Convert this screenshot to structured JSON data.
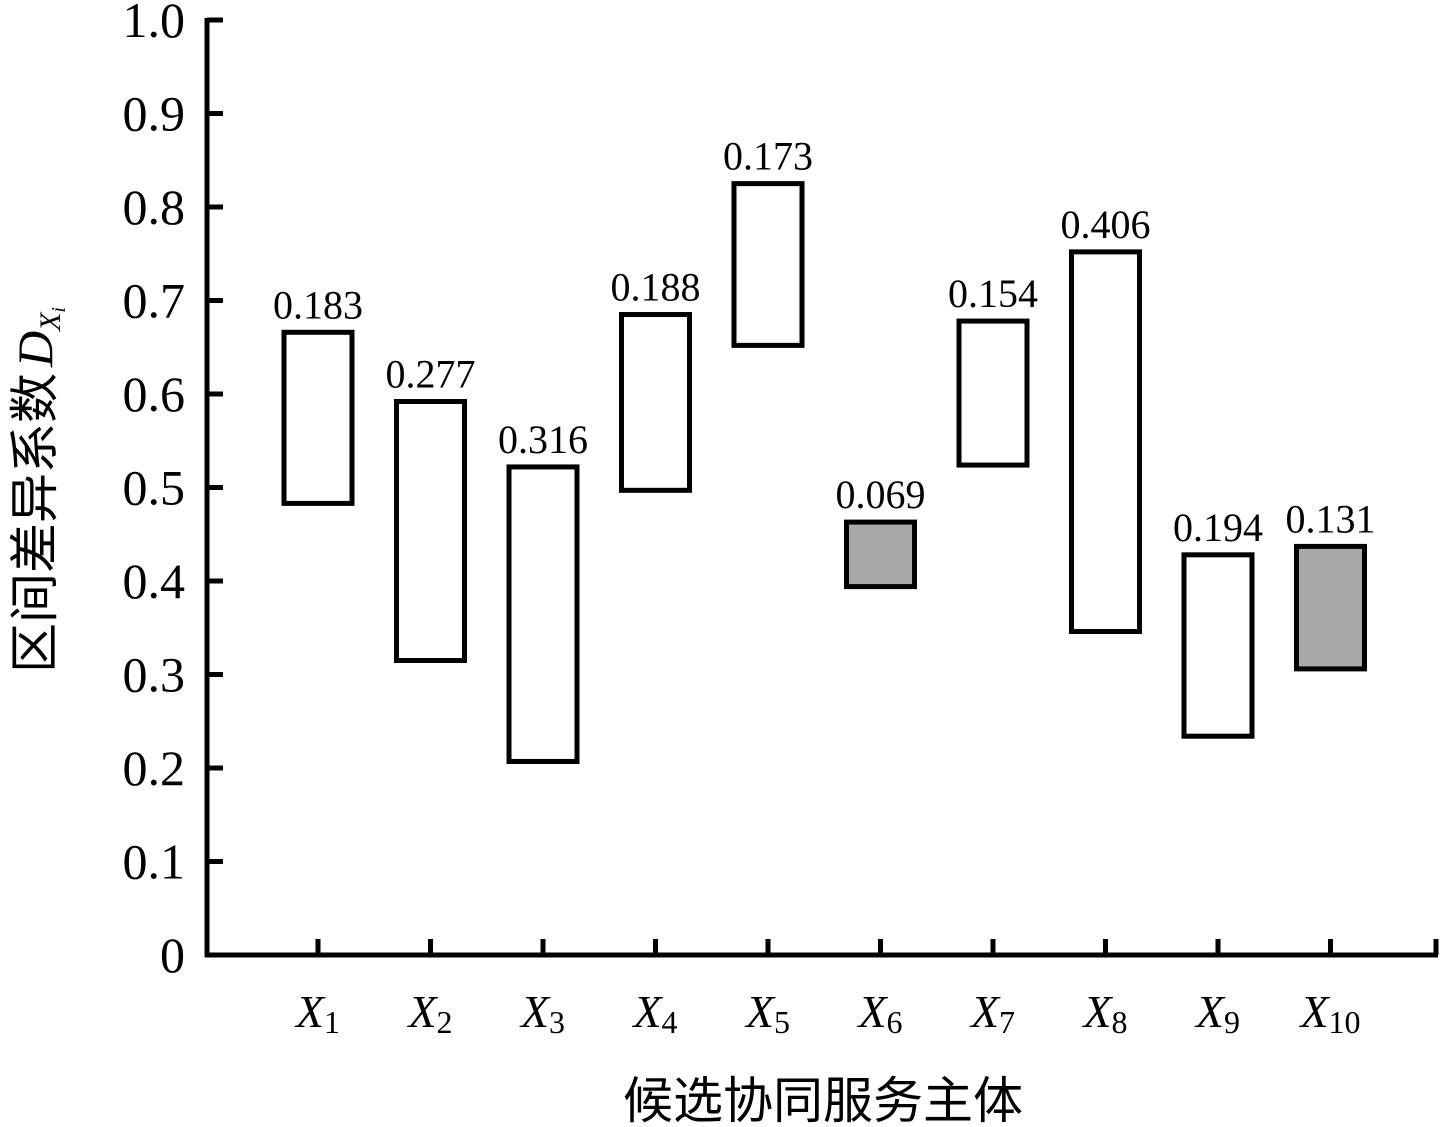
{
  "chart_data": {
    "type": "bar",
    "subtype": "floating-interval",
    "title": "",
    "xlabel": "候选协同服务主体",
    "ylabel": "区间差异系数",
    "ylabel_symbol": {
      "main": "D",
      "sub": "X",
      "subsub": "i"
    },
    "ylim": [
      0,
      1.0
    ],
    "yticks": [
      "0",
      "0.1",
      "0.2",
      "0.3",
      "0.4",
      "0.5",
      "0.6",
      "0.7",
      "0.8",
      "0.9",
      "1.0"
    ],
    "grid": false,
    "categories": [
      {
        "letter": "X",
        "sub": "1"
      },
      {
        "letter": "X",
        "sub": "2"
      },
      {
        "letter": "X",
        "sub": "3"
      },
      {
        "letter": "X",
        "sub": "4"
      },
      {
        "letter": "X",
        "sub": "5"
      },
      {
        "letter": "X",
        "sub": "6"
      },
      {
        "letter": "X",
        "sub": "7"
      },
      {
        "letter": "X",
        "sub": "8"
      },
      {
        "letter": "X",
        "sub": "9"
      },
      {
        "letter": "X",
        "sub": "10"
      }
    ],
    "intervals": [
      {
        "low": 0.483,
        "high": 0.666,
        "label": "0.183",
        "highlight": false
      },
      {
        "low": 0.315,
        "high": 0.592,
        "label": "0.277",
        "highlight": false
      },
      {
        "low": 0.207,
        "high": 0.522,
        "label": "0.316",
        "highlight": false
      },
      {
        "low": 0.497,
        "high": 0.685,
        "label": "0.188",
        "highlight": false
      },
      {
        "low": 0.652,
        "high": 0.825,
        "label": "0.173",
        "highlight": false
      },
      {
        "low": 0.394,
        "high": 0.463,
        "label": "0.069",
        "highlight": true
      },
      {
        "low": 0.524,
        "high": 0.678,
        "label": "0.154",
        "highlight": false
      },
      {
        "low": 0.346,
        "high": 0.752,
        "label": "0.406",
        "highlight": false
      },
      {
        "low": 0.234,
        "high": 0.428,
        "label": "0.194",
        "highlight": false
      },
      {
        "low": 0.306,
        "high": 0.437,
        "label": "0.131",
        "highlight": true
      }
    ],
    "colors": {
      "default_fill": "#ffffff",
      "highlight_fill": "#a8a8a8",
      "stroke": "#000000"
    }
  }
}
